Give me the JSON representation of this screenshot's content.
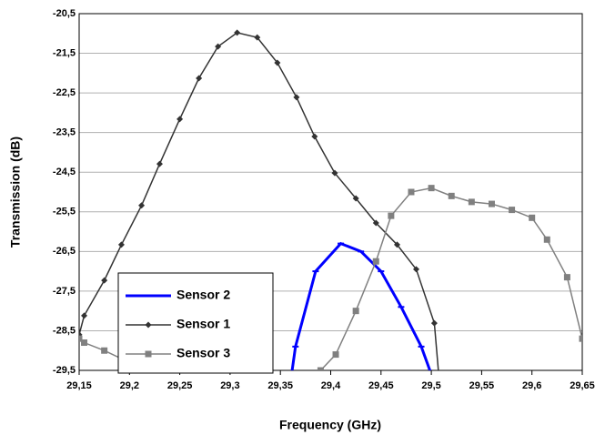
{
  "chart_data": {
    "type": "line",
    "xlabel": "Frequency (GHz)",
    "ylabel": "Transmission (dB)",
    "xlim": [
      29.15,
      29.65
    ],
    "ylim": [
      -29.5,
      -20.5
    ],
    "xticks": [
      {
        "value": 29.15,
        "label": "29,15"
      },
      {
        "value": 29.2,
        "label": "29,2"
      },
      {
        "value": 29.25,
        "label": "29,25"
      },
      {
        "value": 29.3,
        "label": "29,3"
      },
      {
        "value": 29.35,
        "label": "29,35"
      },
      {
        "value": 29.4,
        "label": "29,4"
      },
      {
        "value": 29.45,
        "label": "29,45"
      },
      {
        "value": 29.5,
        "label": "29,5"
      },
      {
        "value": 29.55,
        "label": "29,55"
      },
      {
        "value": 29.6,
        "label": "29,6"
      },
      {
        "value": 29.65,
        "label": "29,65"
      }
    ],
    "yticks": [
      {
        "value": -20.5,
        "label": "-20,5"
      },
      {
        "value": -21.5,
        "label": "-21,5"
      },
      {
        "value": -22.5,
        "label": "-22,5"
      },
      {
        "value": -23.5,
        "label": "-23,5"
      },
      {
        "value": -24.5,
        "label": "-24,5"
      },
      {
        "value": -25.5,
        "label": "-25,5"
      },
      {
        "value": -26.5,
        "label": "-26,5"
      },
      {
        "value": -27.5,
        "label": "-27,5"
      },
      {
        "value": -28.5,
        "label": "-28,5"
      },
      {
        "value": -29.5,
        "label": "-29,5"
      }
    ],
    "grid": true,
    "series": [
      {
        "name": "Sensor 2",
        "color": "#0000ff",
        "marker": "dash",
        "x": [
          29.2,
          29.21,
          29.3,
          29.305,
          29.36,
          29.365,
          29.385,
          29.41,
          29.43,
          29.45,
          29.47,
          29.49,
          29.5
        ],
        "values": [
          -29.3,
          -30.0,
          -29.3,
          -30.0,
          -29.8,
          -28.9,
          -27.0,
          -26.3,
          -26.5,
          -27.0,
          -27.9,
          -28.9,
          -29.6
        ]
      },
      {
        "name": "Sensor 1",
        "color": "#333333",
        "marker": "diamond",
        "x": [
          29.15,
          29.155,
          29.175,
          29.192,
          29.212,
          29.23,
          29.25,
          29.269,
          29.288,
          29.307,
          29.327,
          29.347,
          29.366,
          29.384,
          29.404,
          29.425,
          29.445,
          29.466,
          29.485,
          29.503,
          29.508
        ],
        "values": [
          -28.6,
          -28.12,
          -27.23,
          -26.33,
          -25.34,
          -24.29,
          -23.16,
          -22.13,
          -21.33,
          -20.98,
          -21.1,
          -21.74,
          -22.61,
          -23.6,
          -24.52,
          -25.16,
          -25.78,
          -26.33,
          -26.95,
          -28.31,
          -29.8
        ]
      },
      {
        "name": "Sensor 3",
        "color": "#808080",
        "marker": "square",
        "x": [
          29.15,
          29.155,
          29.175,
          29.2,
          29.22,
          29.3,
          29.39,
          29.405,
          29.425,
          29.445,
          29.46,
          29.48,
          29.5,
          29.52,
          29.54,
          29.56,
          29.58,
          29.6,
          29.615,
          29.635,
          29.65
        ],
        "values": [
          -28.7,
          -28.8,
          -29.0,
          -29.3,
          -29.5,
          -30.2,
          -29.5,
          -29.1,
          -28.0,
          -26.75,
          -25.6,
          -25.0,
          -24.9,
          -25.1,
          -25.25,
          -25.3,
          -25.45,
          -25.65,
          -26.2,
          -27.15,
          -28.7
        ]
      }
    ],
    "legend": "lower-left"
  }
}
